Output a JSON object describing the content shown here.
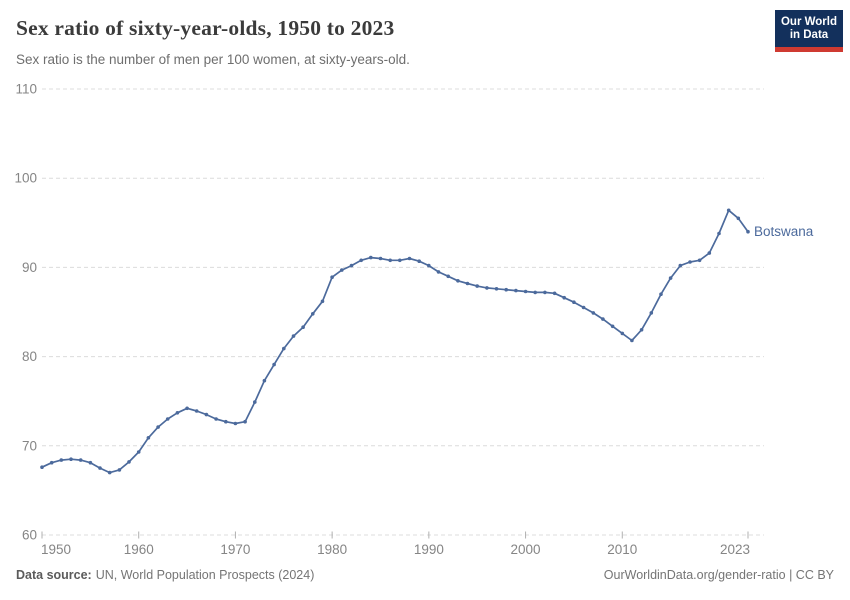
{
  "header": {
    "title": "Sex ratio of sixty-year-olds, 1950 to 2023",
    "subtitle": "Sex ratio is the number of men per 100 women, at sixty-years-old.",
    "logo": {
      "line1": "Our World",
      "line2": "in Data",
      "bg_color": "#13305c",
      "accent_color": "#cf3a31"
    }
  },
  "footer": {
    "source_label": "Data source:",
    "source_text": "UN, World Population Prospects (2024)",
    "link_url": "OurWorldinData.org/gender-ratio",
    "separator": " | ",
    "license": "CC BY"
  },
  "chart_data": {
    "type": "line",
    "title": "Sex ratio of sixty-year-olds, 1950 to 2023",
    "subtitle": "Sex ratio is the number of men per 100 women, at sixty-years-old.",
    "xlabel": "",
    "ylabel": "",
    "xlim": [
      1950,
      2023
    ],
    "ylim": [
      60,
      110
    ],
    "grid": "horizontal-dashed",
    "legend_position": "end-of-line-label",
    "xticks": [
      1950,
      1960,
      1970,
      1980,
      1990,
      2000,
      2010,
      2023
    ],
    "yticks": [
      60,
      70,
      80,
      90,
      100,
      110
    ],
    "end_label": "Botswana",
    "line_color": "#4C6A9C",
    "series": [
      {
        "name": "Botswana",
        "color": "#4C6A9C",
        "x": [
          1950,
          1951,
          1952,
          1953,
          1954,
          1955,
          1956,
          1957,
          1958,
          1959,
          1960,
          1961,
          1962,
          1963,
          1964,
          1965,
          1966,
          1967,
          1968,
          1969,
          1970,
          1971,
          1972,
          1973,
          1974,
          1975,
          1976,
          1977,
          1978,
          1979,
          1980,
          1981,
          1982,
          1983,
          1984,
          1985,
          1986,
          1987,
          1988,
          1989,
          1990,
          1991,
          1992,
          1993,
          1994,
          1995,
          1996,
          1997,
          1998,
          1999,
          2000,
          2001,
          2002,
          2003,
          2004,
          2005,
          2006,
          2007,
          2008,
          2009,
          2010,
          2011,
          2012,
          2013,
          2014,
          2015,
          2016,
          2017,
          2018,
          2019,
          2020,
          2021,
          2022,
          2023
        ],
        "values": [
          67.6,
          68.1,
          68.4,
          68.5,
          68.4,
          68.1,
          67.5,
          67.0,
          67.3,
          68.2,
          69.3,
          70.9,
          72.1,
          73.0,
          73.7,
          74.2,
          73.9,
          73.5,
          73.0,
          72.7,
          72.5,
          72.7,
          74.9,
          77.3,
          79.1,
          80.9,
          82.3,
          83.3,
          84.8,
          86.2,
          88.9,
          89.7,
          90.2,
          90.8,
          91.1,
          91.0,
          90.8,
          90.8,
          91.0,
          90.7,
          90.2,
          89.5,
          89.0,
          88.5,
          88.2,
          87.9,
          87.7,
          87.6,
          87.5,
          87.4,
          87.3,
          87.2,
          87.2,
          87.1,
          86.6,
          86.1,
          85.5,
          84.9,
          84.2,
          83.4,
          82.6,
          81.8,
          83.0,
          84.9,
          87.0,
          88.8,
          90.2,
          90.6,
          90.8,
          91.6,
          93.8,
          96.4,
          95.5,
          94.0
        ]
      }
    ]
  }
}
